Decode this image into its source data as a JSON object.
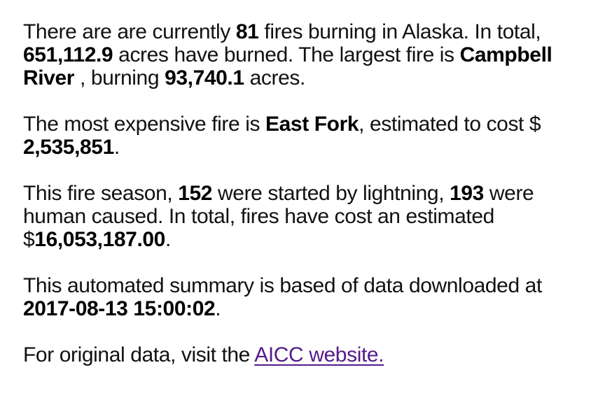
{
  "p1": {
    "t1": "There are are currently ",
    "fire_count": "81",
    "t2": " fires burning in Alaska. In total, ",
    "acres_burned": "651,112.9",
    "t3": " acres have burned. The largest fire is ",
    "largest_fire": "Campbell River",
    "t4": " , burning ",
    "largest_acres": "93,740.1",
    "t5": " acres."
  },
  "p2": {
    "t1": "The most expensive fire is ",
    "expensive_fire": "East Fork",
    "t2": ", estimated to cost $ ",
    "cost": "2,535,851",
    "t3": "."
  },
  "p3": {
    "t1": "This fire season, ",
    "lightning_count": "152",
    "t2": " were started by lightning, ",
    "human_count": "193",
    "t3": " were human caused. In total, fires have cost an estimated $",
    "total_cost": "16,053,187.00",
    "t4": "."
  },
  "p4": {
    "t1": "This automated summary is based of data downloaded at ",
    "timestamp": "2017-08-13 15:00:02",
    "t2": "."
  },
  "p5": {
    "t1": "For original data, visit the ",
    "link_text": "AICC website."
  },
  "colors": {
    "text": "#111111",
    "link": "#551a8b",
    "background": "#ffffff"
  }
}
